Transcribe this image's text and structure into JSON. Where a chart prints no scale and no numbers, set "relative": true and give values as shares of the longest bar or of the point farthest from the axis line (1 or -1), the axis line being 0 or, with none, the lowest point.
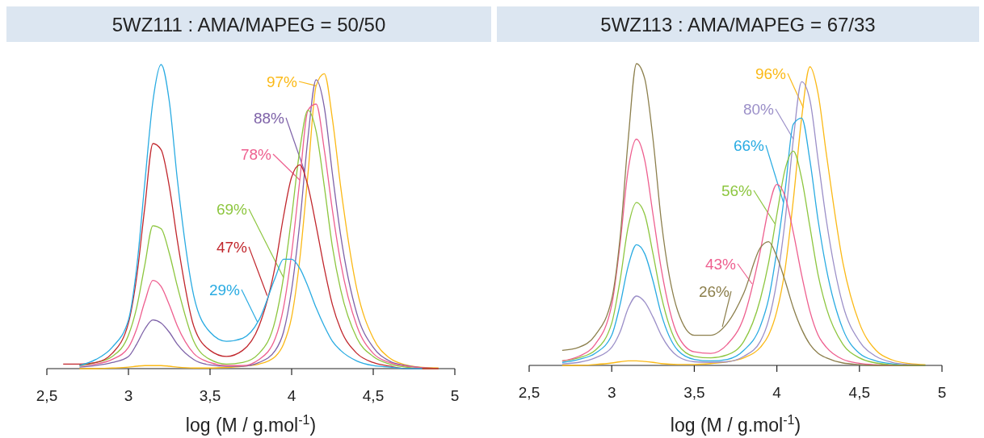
{
  "chart_data": [
    {
      "type": "line",
      "title": "5WZ111 : AMA/MAPEG = 50/50",
      "xlabel": "log (M / g.mol$^{-1}$)",
      "relative": true,
      "xlim": [
        2.5,
        5
      ],
      "xticks": [
        {
          "value": 2.5,
          "label": "2,5"
        },
        3,
        {
          "value": 3.5,
          "label": "3,5"
        },
        4,
        {
          "value": 4.5,
          "label": "4,5"
        },
        5
      ],
      "x": [
        2.6,
        2.7,
        2.8,
        2.9,
        3.0,
        3.05,
        3.1,
        3.15,
        3.2,
        3.25,
        3.3,
        3.4,
        3.5,
        3.6,
        3.7,
        3.8,
        3.9,
        3.95,
        4.0,
        4.05,
        4.1,
        4.15,
        4.2,
        4.25,
        4.3,
        4.4,
        4.5,
        4.6,
        4.7,
        4.8,
        4.9
      ],
      "series": [
        {
          "name": "97%",
          "color": "#fbb916",
          "values": [
            null,
            0,
            0,
            0.002,
            0.005,
            0.008,
            0.01,
            0.01,
            0.01,
            0.008,
            0.005,
            0.002,
            0.002,
            0.004,
            0.008,
            0.015,
            0.04,
            0.08,
            0.17,
            0.36,
            0.64,
            0.93,
            0.97,
            0.82,
            0.6,
            0.26,
            0.1,
            0.035,
            0.012,
            0.004,
            0.002
          ]
        },
        {
          "name": "88%",
          "color": "#7e62a8",
          "values": [
            null,
            0.005,
            0.01,
            0.02,
            0.04,
            0.08,
            0.13,
            0.16,
            0.15,
            0.12,
            0.08,
            0.03,
            0.012,
            0.008,
            0.008,
            0.02,
            0.06,
            0.12,
            0.26,
            0.48,
            0.76,
            0.95,
            0.86,
            0.64,
            0.44,
            0.18,
            0.07,
            0.025,
            0.01,
            0.003,
            0
          ]
        },
        {
          "name": "78%",
          "color": "#ee5f8f",
          "values": [
            null,
            0.01,
            0.015,
            0.03,
            0.07,
            0.13,
            0.22,
            0.29,
            0.27,
            0.21,
            0.14,
            0.05,
            0.02,
            0.01,
            0.01,
            0.03,
            0.1,
            0.2,
            0.38,
            0.62,
            0.85,
            0.87,
            0.72,
            0.52,
            0.35,
            0.14,
            0.05,
            0.02,
            0.008,
            0.003,
            0
          ]
        },
        {
          "name": "69%",
          "color": "#8dc63f",
          "values": [
            null,
            0.01,
            0.02,
            0.04,
            0.11,
            0.2,
            0.34,
            0.47,
            0.46,
            0.38,
            0.27,
            0.09,
            0.03,
            0.015,
            0.02,
            0.05,
            0.16,
            0.3,
            0.5,
            0.72,
            0.85,
            0.78,
            0.6,
            0.4,
            0.26,
            0.1,
            0.04,
            0.015,
            0.005,
            0,
            0
          ]
        },
        {
          "name": "47%",
          "color": "#c1272d",
          "values": [
            0.015,
            0.015,
            0.02,
            0.05,
            0.15,
            0.3,
            0.53,
            0.74,
            0.72,
            0.6,
            0.42,
            0.14,
            0.06,
            0.04,
            0.06,
            0.14,
            0.34,
            0.5,
            0.63,
            0.67,
            0.6,
            0.47,
            0.33,
            0.21,
            0.13,
            0.05,
            0.02,
            0.008,
            0,
            0,
            0
          ]
        },
        {
          "name": "29%",
          "color": "#29abe2",
          "values": [
            null,
            0.01,
            0.03,
            0.07,
            0.16,
            0.33,
            0.61,
            0.88,
            1.0,
            0.88,
            0.62,
            0.24,
            0.12,
            0.09,
            0.1,
            0.16,
            0.3,
            0.36,
            0.36,
            0.33,
            0.27,
            0.2,
            0.14,
            0.09,
            0.06,
            0.025,
            0.01,
            0.005,
            0,
            0,
            null
          ]
        }
      ]
    },
    {
      "type": "line",
      "title": "5WZ113 : AMA/MAPEG = 67/33",
      "xlabel": "log (M / g.mol$^{-1}$)",
      "relative": true,
      "xlim": [
        2.5,
        5
      ],
      "xticks": [
        {
          "value": 2.5,
          "label": "2,5"
        },
        3,
        {
          "value": 3.5,
          "label": "3,5"
        },
        4,
        {
          "value": 4.5,
          "label": "4,5"
        },
        5
      ],
      "x": [
        2.7,
        2.8,
        2.9,
        3.0,
        3.05,
        3.1,
        3.15,
        3.2,
        3.25,
        3.3,
        3.4,
        3.5,
        3.6,
        3.7,
        3.8,
        3.9,
        3.95,
        4.0,
        4.05,
        4.1,
        4.15,
        4.2,
        4.25,
        4.3,
        4.4,
        4.5,
        4.6,
        4.7,
        4.8,
        4.9
      ],
      "series": [
        {
          "name": "96%",
          "color": "#fbb916",
          "values": [
            0,
            0,
            0.003,
            0.008,
            0.012,
            0.015,
            0.015,
            0.013,
            0.01,
            0.006,
            0.003,
            0.003,
            0.006,
            0.012,
            0.025,
            0.06,
            0.1,
            0.18,
            0.32,
            0.55,
            0.82,
            0.99,
            0.9,
            0.7,
            0.34,
            0.14,
            0.05,
            0.018,
            0.006,
            0.002
          ]
        },
        {
          "name": "80%",
          "color": "#9b8fc8",
          "values": [
            0.005,
            0.01,
            0.025,
            0.06,
            0.11,
            0.19,
            0.23,
            0.21,
            0.16,
            0.1,
            0.03,
            0.012,
            0.01,
            0.012,
            0.03,
            0.08,
            0.15,
            0.28,
            0.48,
            0.75,
            0.94,
            0.88,
            0.68,
            0.48,
            0.2,
            0.08,
            0.03,
            0.01,
            0.003,
            0
          ]
        },
        {
          "name": "66%",
          "color": "#29abe2",
          "values": [
            0.01,
            0.02,
            0.04,
            0.1,
            0.2,
            0.33,
            0.4,
            0.37,
            0.28,
            0.17,
            0.05,
            0.02,
            0.015,
            0.02,
            0.05,
            0.13,
            0.22,
            0.38,
            0.58,
            0.8,
            0.82,
            0.68,
            0.48,
            0.32,
            0.12,
            0.04,
            0.015,
            0.005,
            0,
            0
          ]
        },
        {
          "name": "56%",
          "color": "#8dc63f",
          "values": [
            0.015,
            0.025,
            0.05,
            0.14,
            0.28,
            0.46,
            0.54,
            0.5,
            0.37,
            0.23,
            0.07,
            0.03,
            0.025,
            0.035,
            0.08,
            0.22,
            0.34,
            0.5,
            0.65,
            0.71,
            0.62,
            0.46,
            0.3,
            0.19,
            0.07,
            0.025,
            0.008,
            0.002,
            0,
            0
          ]
        },
        {
          "name": "43%",
          "color": "#ee5f8f",
          "values": [
            0.015,
            0.03,
            0.07,
            0.2,
            0.4,
            0.65,
            0.75,
            0.68,
            0.5,
            0.32,
            0.1,
            0.045,
            0.04,
            0.07,
            0.16,
            0.38,
            0.52,
            0.6,
            0.56,
            0.44,
            0.3,
            0.18,
            0.1,
            0.06,
            0.02,
            0.007,
            0.002,
            0,
            null,
            null
          ]
        },
        {
          "name": "26%",
          "color": "#8c7f4c",
          "values": [
            0.05,
            0.06,
            0.1,
            0.22,
            0.42,
            0.75,
            1.0,
            0.95,
            0.75,
            0.48,
            0.18,
            0.1,
            0.1,
            0.14,
            0.24,
            0.39,
            0.41,
            0.36,
            0.28,
            0.19,
            0.12,
            0.07,
            0.04,
            0.025,
            0.008,
            0.003,
            0,
            0,
            0,
            0
          ]
        }
      ]
    }
  ]
}
